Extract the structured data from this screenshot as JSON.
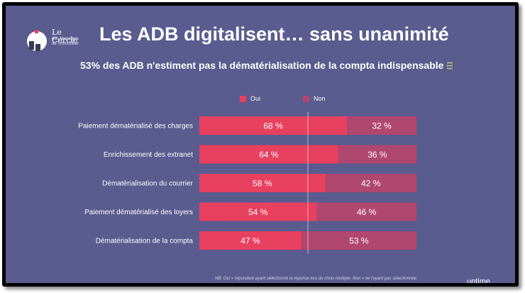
{
  "logo": {
    "name": "Le Cercle",
    "sub": [
      "des Managers",
      "de l'immobilier"
    ]
  },
  "title": "Les ADB digitalisent… sans unanimité",
  "subtitle": "53% des ADB n'estiment pas la dématérialisation de la compta indispensable",
  "icons": {
    "cabinet": "file-cabinet-icon"
  },
  "colors": {
    "oui": "#e8405f",
    "non": "#b0476e",
    "background": "#5a5b8f",
    "gridline": "#ffffff"
  },
  "chart_data": {
    "type": "bar",
    "orientation": "horizontal",
    "stacked": true,
    "categories": [
      "Paiement dématérialisé des charges",
      "Enrichissement des extranet",
      "Dématérialisation du courrier",
      "Paiement dématérialisé des loyers",
      "Dématérialisation de la compta"
    ],
    "series": [
      {
        "name": "Oui",
        "values": [
          68,
          64,
          58,
          54,
          47
        ],
        "labels": [
          "68 %",
          "64 %",
          "58 %",
          "54 %",
          "47 %"
        ]
      },
      {
        "name": "Non",
        "values": [
          32,
          36,
          42,
          46,
          53
        ],
        "labels": [
          "32 %",
          "36 %",
          "42 %",
          "46 %",
          "53 %"
        ]
      }
    ],
    "xlim": [
      0,
      100
    ],
    "legend": "top",
    "grid": "vertical gridlines at 50%"
  },
  "footnote": "NB: Oui = répondant ayant sélectionné la réponse lors du choix multiple. Non = ne l'ayant pas sélectionnée.",
  "brand": "uptime"
}
